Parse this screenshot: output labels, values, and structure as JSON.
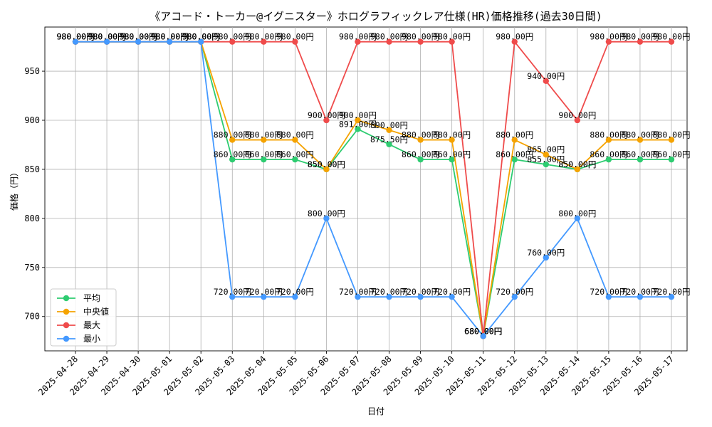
{
  "chart_data": {
    "type": "line",
    "title": "《アコード・トーカー@イグニスター》ホログラフィックレア仕様(HR)価格推移(過去30日間)",
    "xlabel": "日付",
    "ylabel": "価格（円）",
    "ylim": [
      665,
      995
    ],
    "yticks": [
      700,
      750,
      800,
      850,
      900,
      950
    ],
    "grid": true,
    "legend_position": "lower-left",
    "label_suffix": "円",
    "categories": [
      "2025-04-28",
      "2025-04-29",
      "2025-04-30",
      "2025-05-01",
      "2025-05-02",
      "2025-05-03",
      "2025-05-04",
      "2025-05-05",
      "2025-05-06",
      "2025-05-07",
      "2025-05-08",
      "2025-05-09",
      "2025-05-10",
      "2025-05-11",
      "2025-05-12",
      "2025-05-13",
      "2025-05-14",
      "2025-05-15",
      "2025-05-16",
      "2025-05-17"
    ],
    "series": [
      {
        "name": "平均",
        "color": "#2ecc71",
        "values": [
          980,
          980,
          980,
          980,
          980,
          860,
          860,
          860,
          850,
          891,
          875.5,
          860,
          860,
          680,
          860,
          855,
          850,
          860,
          860,
          860
        ]
      },
      {
        "name": "中央値",
        "color": "#f5a300",
        "values": [
          980,
          980,
          980,
          980,
          980,
          880,
          880,
          880,
          850,
          900,
          890,
          880,
          880,
          680,
          880,
          865,
          850,
          880,
          880,
          880
        ]
      },
      {
        "name": "最大",
        "color": "#ef4b4b",
        "values": [
          980,
          980,
          980,
          980,
          980,
          980,
          980,
          980,
          900,
          980,
          980,
          980,
          980,
          680,
          980,
          940,
          900,
          980,
          980,
          980
        ]
      },
      {
        "name": "最小",
        "color": "#4499ff",
        "values": [
          980,
          980,
          980,
          980,
          980,
          720,
          720,
          720,
          800,
          720,
          720,
          720,
          720,
          680,
          720,
          760,
          800,
          720,
          720,
          720
        ]
      }
    ]
  }
}
